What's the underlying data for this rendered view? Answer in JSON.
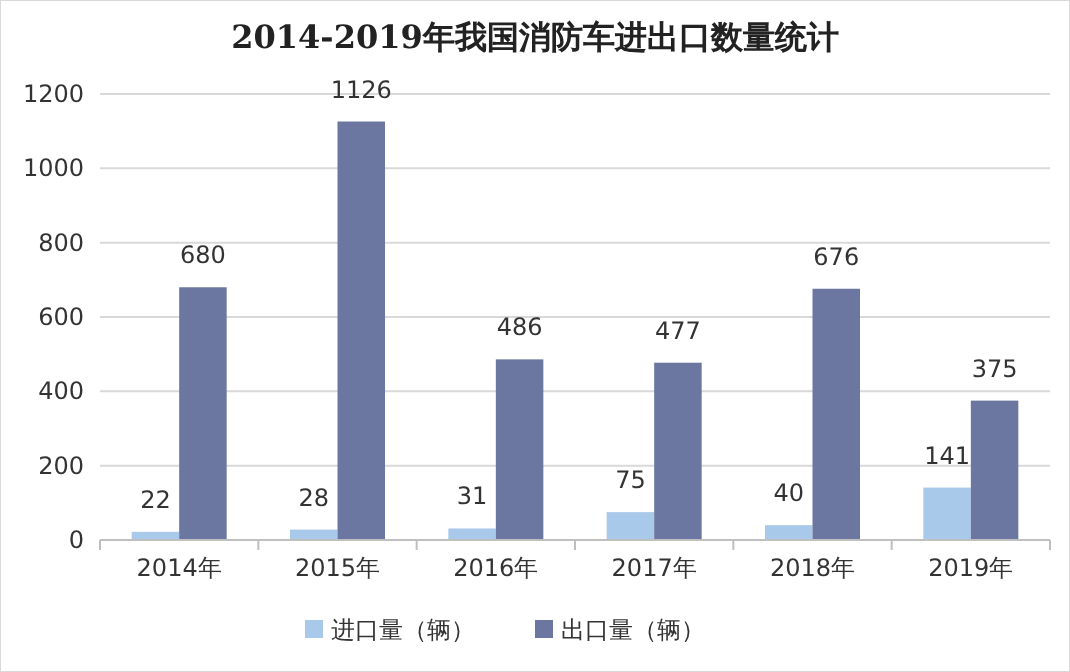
{
  "chart_data": {
    "type": "bar",
    "title": "2014-2019年我国消防车进出口数量统计",
    "categories": [
      "2014年",
      "2015年",
      "2016年",
      "2017年",
      "2018年",
      "2019年"
    ],
    "series": [
      {
        "name": "进口量（辆）",
        "color": "#a9c9ea",
        "values": [
          22,
          28,
          31,
          75,
          40,
          141
        ]
      },
      {
        "name": "出口量（辆）",
        "color": "#6b77a0",
        "values": [
          680,
          1126,
          486,
          477,
          676,
          375
        ]
      }
    ],
    "ylim": [
      0,
      1200
    ],
    "yticks": [
      0,
      200,
      400,
      600,
      800,
      1000,
      1200
    ],
    "grid": "y",
    "legend": "bottom",
    "data_labels": true
  }
}
